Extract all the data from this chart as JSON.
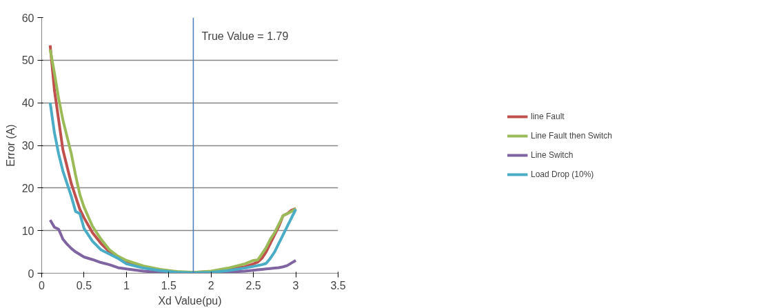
{
  "chart_data": {
    "type": "line",
    "xlabel": "Xd Value(pu)",
    "ylabel": "Error (A)",
    "x": [
      0.1,
      0.15,
      0.2,
      0.25,
      0.3,
      0.35,
      0.4,
      0.45,
      0.5,
      0.6,
      0.7,
      0.8,
      0.9,
      1.0,
      1.2,
      1.4,
      1.6,
      1.8,
      2.0,
      2.2,
      2.4,
      2.5,
      2.55,
      2.6,
      2.65,
      2.7,
      2.75,
      2.8,
      2.85,
      2.9,
      2.95,
      3.0
    ],
    "series": [
      {
        "name": "line Fault",
        "color": "#c0504d",
        "values": [
          53.5,
          43,
          36,
          29,
          25,
          21,
          18,
          15,
          13,
          9.5,
          7,
          5,
          3.8,
          2.8,
          1.5,
          0.8,
          0.3,
          0.2,
          0.4,
          0.9,
          1.5,
          2.2,
          2.6,
          3.5,
          5,
          7,
          9,
          11,
          13.5,
          14,
          14.8,
          15.2
        ]
      },
      {
        "name": "Line Fault then Switch",
        "color": "#9bbb59",
        "values": [
          52.5,
          47,
          41,
          36,
          32,
          28,
          23,
          18.5,
          15.5,
          11,
          8,
          5.5,
          4,
          3,
          1.7,
          0.9,
          0.4,
          0.2,
          0.5,
          1.2,
          2.2,
          3,
          3.1,
          4.5,
          6,
          8,
          9.5,
          11.5,
          13.5,
          14,
          14.5,
          15.2
        ]
      },
      {
        "name": "Line Switch",
        "color": "#8064a2",
        "values": [
          12.5,
          10.8,
          10.3,
          8,
          6.8,
          5.8,
          5,
          4.4,
          3.8,
          3.2,
          2.5,
          2,
          1.3,
          1.0,
          0.5,
          0.2,
          0.1,
          0,
          0.1,
          0.3,
          0.5,
          0.7,
          0.8,
          0.9,
          1.0,
          1.1,
          1.2,
          1.3,
          1.5,
          1.8,
          2.4,
          3.0
        ]
      },
      {
        "name": "Load Drop (10%)",
        "color": "#4bacc6",
        "values": [
          40,
          33,
          28,
          24,
          21,
          18,
          14.5,
          14,
          10.5,
          7.5,
          5.5,
          4.5,
          3.5,
          2.2,
          1.2,
          0.6,
          0.2,
          0.1,
          0.2,
          0.6,
          1.2,
          1.6,
          1.8,
          2.0,
          2.3,
          3.5,
          5,
          7,
          9,
          11,
          13,
          15
        ]
      }
    ],
    "xlim": [
      0,
      3.5
    ],
    "xticks": [
      0,
      0.5,
      1,
      1.5,
      2,
      2.5,
      3,
      3.5
    ],
    "ylim": [
      0,
      60
    ],
    "yticks": [
      0,
      10,
      20,
      30,
      40,
      50,
      60
    ],
    "grid": "y",
    "legend": "right",
    "marker": "none",
    "line_style": "solid",
    "ref_lines": [
      {
        "axis": "x",
        "value": 1.79,
        "label": "True Value = 1.79",
        "color": "#4a7ebb"
      }
    ]
  }
}
